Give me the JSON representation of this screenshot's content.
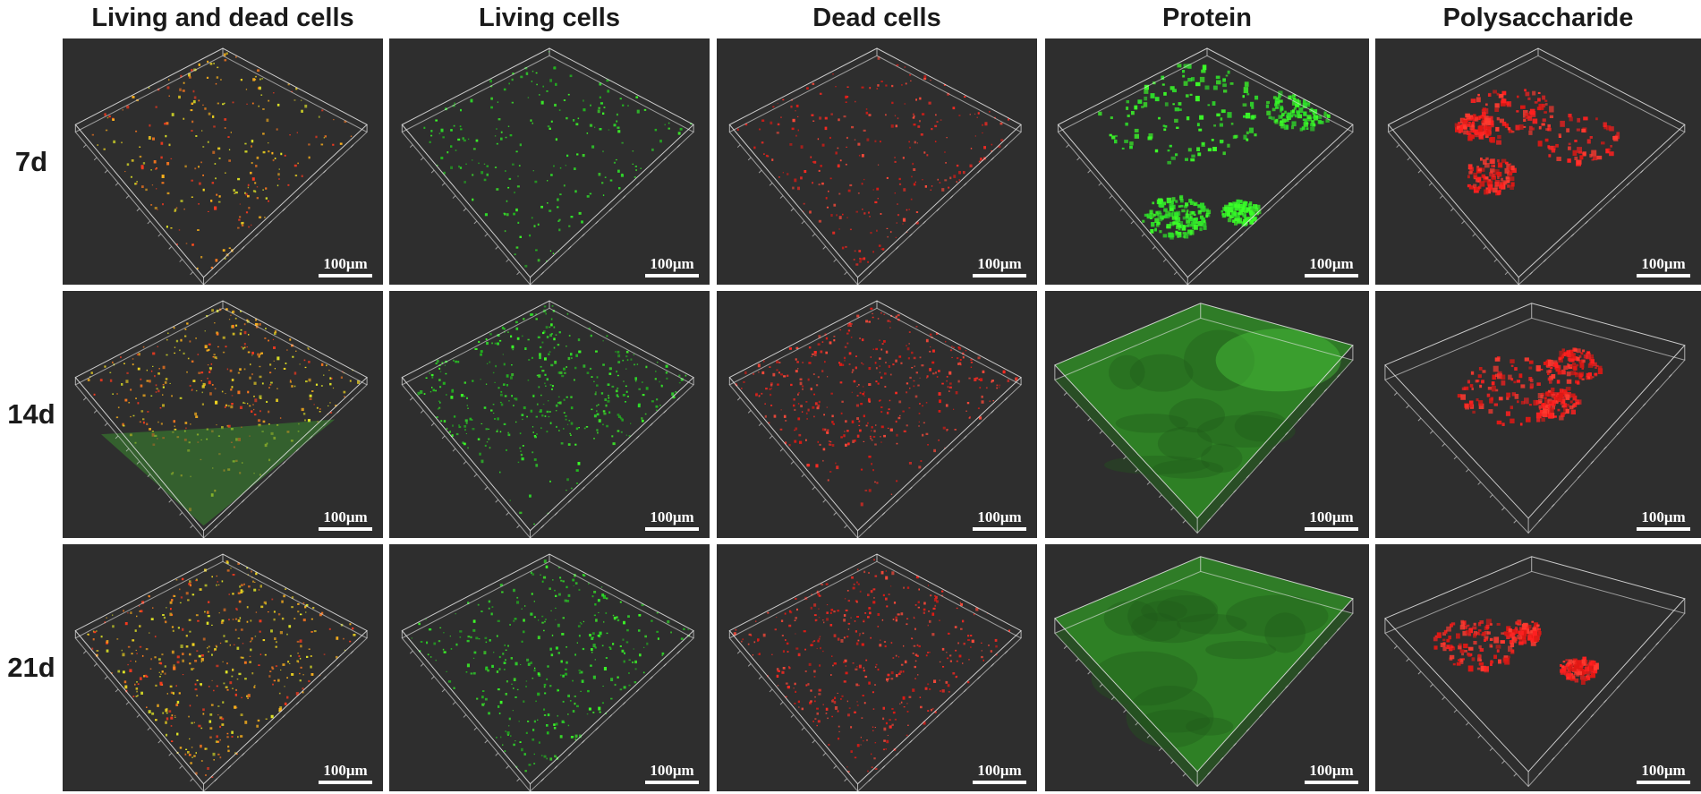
{
  "figure": {
    "columns": [
      {
        "label": "Living and dead cells",
        "stain": "live-dead"
      },
      {
        "label": "Living cells",
        "stain": "live"
      },
      {
        "label": "Dead cells",
        "stain": "dead"
      },
      {
        "label": "Protein",
        "stain": "protein"
      },
      {
        "label": "Polysaccharide",
        "stain": "polysaccharide"
      }
    ],
    "rows": [
      {
        "label": "7d"
      },
      {
        "label": "14d"
      },
      {
        "label": "21d"
      }
    ],
    "scale_bar": "100μm",
    "colors": {
      "panel_background": "#2e2e2e",
      "live_green": "#33e82e",
      "dead_red": "#ff2a22",
      "merged_yellow": "#f2d620",
      "protein_green": "#3cff28",
      "polysaccharide_red": "#ff2020",
      "box_lines": "#e6e6e6"
    }
  }
}
